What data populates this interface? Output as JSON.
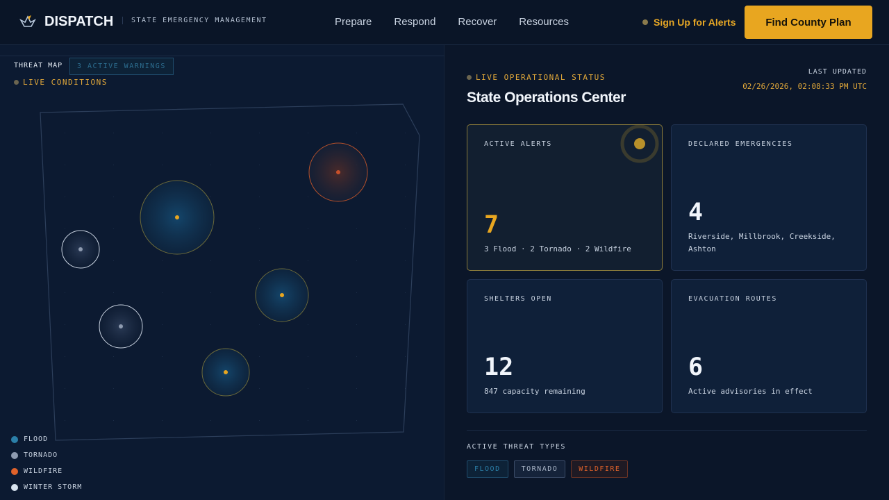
{
  "header": {
    "brand": "DISPATCH",
    "tagline": "STATE EMERGENCY MANAGEMENT",
    "nav": [
      "Prepare",
      "Respond",
      "Recover",
      "Resources"
    ],
    "signup": "Sign Up for Alerts",
    "cta": "Find County Plan"
  },
  "map": {
    "title": "THREAT MAP",
    "warnings": "3 ACTIVE WARNINGS",
    "live": "LIVE CONDITIONS",
    "legend": [
      {
        "label": "FLOOD",
        "color": "#2b7fa8"
      },
      {
        "label": "TORNADO",
        "color": "#8e9bb0"
      },
      {
        "label": "WILDFIRE",
        "color": "#e0622a"
      },
      {
        "label": "WINTER STORM",
        "color": "#d8e4f0"
      }
    ]
  },
  "status": {
    "live": "LIVE OPERATIONAL STATUS",
    "title": "State Operations Center",
    "last_updated_label": "LAST UPDATED",
    "timestamp": "02/26/2026, 02:08:33 PM UTC"
  },
  "cards": [
    {
      "title": "ACTIVE ALERTS",
      "value": "7",
      "sub": "3 Flood · 2 Tornado · 2 Wildfire"
    },
    {
      "title": "DECLARED EMERGENCIES",
      "value": "4",
      "sub": "Riverside, Millbrook, Creekside, Ashton"
    },
    {
      "title": "SHELTERS OPEN",
      "value": "12",
      "sub": "847 capacity remaining"
    },
    {
      "title": "EVACUATION ROUTES",
      "value": "6",
      "sub": "Active advisories in effect"
    }
  ],
  "threats": {
    "title": "ACTIVE THREAT TYPES",
    "chips": [
      "FLOOD",
      "TORNADO",
      "WILDFIRE"
    ]
  },
  "colors": {
    "accent": "#e8a620",
    "flood": "#2b7fa8",
    "wildfire": "#e0622a"
  }
}
